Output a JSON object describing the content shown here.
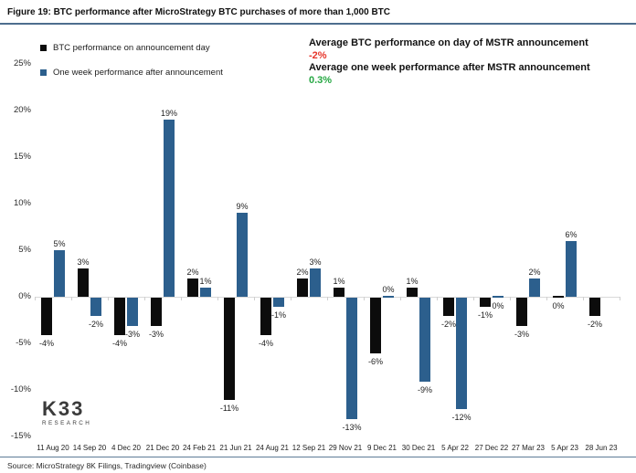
{
  "header": {
    "title": "Figure 19: BTC performance after MicroStrategy BTC purchases of more than 1,000 BTC"
  },
  "legend": {
    "items": [
      {
        "label": "BTC performance on announcement day",
        "color": "#0c0c0c"
      },
      {
        "label": "One week performance after announcement",
        "color": "#2c5f8d"
      }
    ]
  },
  "annotations": {
    "day_label": "Average BTC performance on day of MSTR announcement",
    "day_value": "-2%",
    "day_color": "#e63429",
    "week_label": "Average one week performance after MSTR announcement",
    "week_value": "0.3%",
    "week_color": "#27a844"
  },
  "chart_data": {
    "type": "bar",
    "title": "Figure 19: BTC performance after MicroStrategy BTC purchases of more than 1,000 BTC",
    "categories": [
      "11 Aug 20",
      "14 Sep 20",
      "4 Dec 20",
      "21 Dec 20",
      "24 Feb 21",
      "21 Jun 21",
      "24 Aug 21",
      "12 Sep 21",
      "29 Nov 21",
      "9 Dec 21",
      "30 Dec 21",
      "5 Apr 22",
      "27 Dec 22",
      "27 Mar 23",
      "5 Apr 23",
      "28 Jun 23"
    ],
    "series": [
      {
        "name": "BTC performance on announcement day",
        "color": "#0c0c0c",
        "values": [
          -4,
          3,
          -4,
          -3,
          2,
          -11,
          -4,
          2,
          1,
          -6,
          1,
          -2,
          -1,
          -3,
          0,
          -2
        ]
      },
      {
        "name": "One week performance after announcement",
        "color": "#2c5f8d",
        "values": [
          5,
          -2,
          -3,
          19,
          1,
          9,
          -1,
          3,
          -13,
          0,
          -9,
          -12,
          0,
          2,
          6,
          null
        ]
      }
    ],
    "unit": "%",
    "ylim": [
      -15,
      25
    ],
    "yticks": [
      25,
      20,
      15,
      10,
      5,
      0,
      -5,
      -10,
      -15
    ],
    "grid": false,
    "legend_position": "top-left",
    "label_overrides": [
      {
        "series": 1,
        "index": 9,
        "side": "above"
      }
    ]
  },
  "logo": {
    "title": "K33",
    "subtitle": "RESEARCH"
  },
  "footer": {
    "source": "Source: MicroStrategy 8K Filings, Tradingview (Coinbase)"
  }
}
